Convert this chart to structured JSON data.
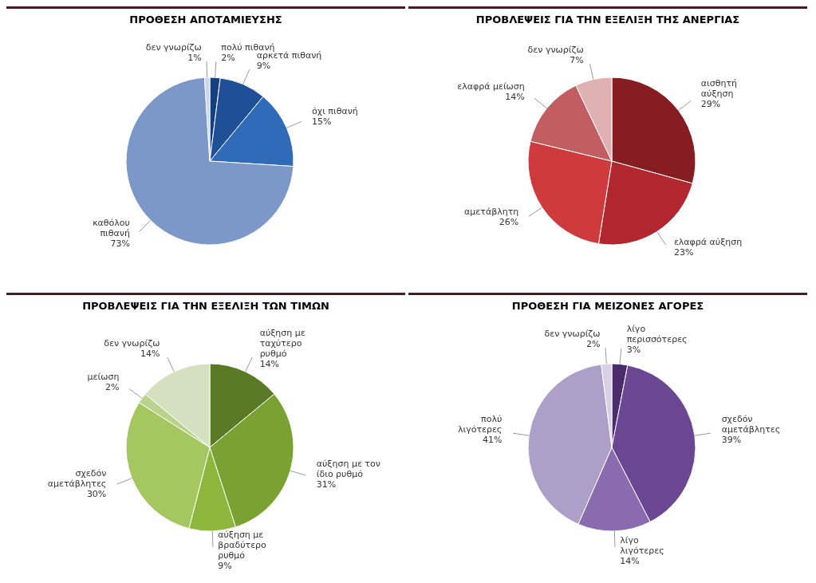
{
  "chart_data": [
    {
      "type": "pie",
      "title": "ΠΡΟΘΕΣΗ ΑΠΟΤΑΜΙΕΥΣΗΣ",
      "categories": [
        "πολύ πιθανή",
        "αρκετά πιθανή",
        "όχι πιθανή",
        "καθόλου πιθανή",
        "δεν γνωρίζω"
      ],
      "values": [
        2,
        9,
        15,
        73,
        1
      ],
      "value_labels": [
        "2%",
        "9%",
        "15%",
        "73%",
        "1%"
      ],
      "colors": [
        "#173f80",
        "#1f4f96",
        "#2f6bb8",
        "#7b98c8",
        "#c9d6ec"
      ]
    },
    {
      "type": "pie",
      "title": "ΠΡΟΒΛΕΨΕΙΣ ΓΙΑ ΤΗΝ ΕΞΕΛΙΞΗ ΤΗΣ ΑΝΕΡΓΙΑΣ",
      "categories": [
        "αισθητή αύξηση",
        "ελαφρά αύξηση",
        "αμετάβλητη",
        "ελαφρά μείωση",
        "δεν γνωρίζω"
      ],
      "values": [
        29,
        23,
        26,
        14,
        7
      ],
      "value_labels": [
        "29%",
        "23%",
        "26%",
        "14%",
        "7%"
      ],
      "colors": [
        "#851d22",
        "#b1272d",
        "#cf3a3d",
        "#c25e62",
        "#e0b1b3"
      ]
    },
    {
      "type": "pie",
      "title": "ΠΡΟΒΛΕΨΕΙΣ ΓΙΑ ΤΗΝ ΕΞΕΛΙΞΗ ΤΩΝ ΤΙΜΩΝ",
      "categories": [
        "αύξηση με ταχύτερο ρυθμό",
        "αύξηση με τον ίδιο ρυθμό",
        "αύξηση με βραδύτερο ρυθμό",
        "σχεδόν αμετάβλητες",
        "μείωση",
        "δεν γνωρίζω"
      ],
      "values": [
        14,
        31,
        9,
        30,
        2,
        14
      ],
      "value_labels": [
        "14%",
        "31%",
        "9%",
        "30%",
        "2%",
        "14%"
      ],
      "colors": [
        "#5a7a25",
        "#7aa232",
        "#8db63c",
        "#a5c760",
        "#b9d38a",
        "#d4e0c0"
      ]
    },
    {
      "type": "pie",
      "title": "ΠΡΟΘΕΣΗ ΓΙΑ ΜΕΙΖΟΝΕΣ ΑΓΟΡΕΣ",
      "categories": [
        "λίγο περισσότερες",
        "σχεδόν αμετάβλητες",
        "λίγο λιγότερες",
        "πολύ λιγότερες",
        "δεν γνωρίζω"
      ],
      "values": [
        3,
        39,
        14,
        41,
        2
      ],
      "value_labels": [
        "3%",
        "39%",
        "14%",
        "41%",
        "2%"
      ],
      "colors": [
        "#4a2c6c",
        "#6b4793",
        "#8a6bb0",
        "#ada0c8",
        "#d8d0e6"
      ]
    }
  ]
}
